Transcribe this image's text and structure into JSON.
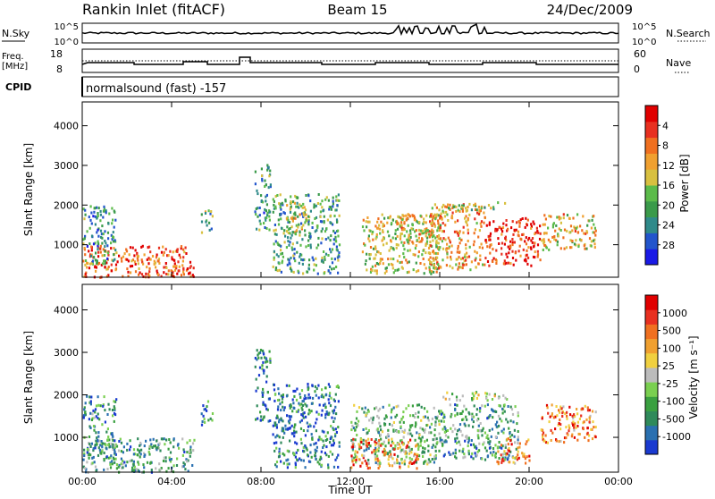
{
  "header": {
    "station": "Rankin Inlet (fitACF)",
    "beam": "Beam 15",
    "date": "24/Dec/2009"
  },
  "noise_panel": {
    "left_label": "N.Sky",
    "right_label": "N.Search",
    "left_ticks": [
      "10^5",
      "10^0"
    ],
    "right_ticks": [
      "10^5",
      "10^0"
    ]
  },
  "freq_panel": {
    "left_label_1": "Freq.",
    "left_label_2": "[MHz]",
    "right_label": "Nave",
    "left_ticks": [
      "18",
      "8"
    ],
    "right_ticks": [
      "60",
      "0"
    ]
  },
  "cpid": {
    "label": "CPID",
    "program": "normalsound (fast) -157"
  },
  "chart_data": [
    {
      "type": "heatmap",
      "title": "Power",
      "ylabel": "Slant Range [km]",
      "xlabel": "",
      "x_ticks": [
        "00:00",
        "04:00",
        "08:00",
        "12:00",
        "16:00",
        "20:00",
        "00:00"
      ],
      "x_range_hours": [
        0,
        24
      ],
      "ylim": [
        180,
        4600
      ],
      "y_ticks": [
        "1000",
        "2000",
        "3000",
        "4000"
      ],
      "y_tick_values": [
        1000,
        2000,
        3000,
        4000
      ],
      "colorbar": {
        "label": "Power [dB]",
        "ticks": [
          "4",
          "8",
          "12",
          "16",
          "20",
          "24",
          "28"
        ],
        "colors": [
          "#1a1ae6",
          "#2255cc",
          "#2f8a8a",
          "#3a9a4a",
          "#5cbb4a",
          "#d8c040",
          "#f0a030",
          "#f07020",
          "#e83020",
          "#e00000"
        ]
      },
      "scatter": [
        {
          "t0": 0.0,
          "t1": 5.0,
          "r0": 200,
          "r1": 1000,
          "level": 0.8
        },
        {
          "t0": 0.0,
          "t1": 1.5,
          "r0": 500,
          "r1": 2000,
          "level": 0.3
        },
        {
          "t0": 4.0,
          "t1": 5.0,
          "r0": 200,
          "r1": 500,
          "level": 0.85
        },
        {
          "t0": 5.3,
          "t1": 5.8,
          "r0": 1300,
          "r1": 1900,
          "level": 0.4
        },
        {
          "t0": 7.7,
          "t1": 8.4,
          "r0": 1400,
          "r1": 3100,
          "level": 0.3
        },
        {
          "t0": 8.5,
          "t1": 11.5,
          "r0": 300,
          "r1": 2300,
          "level": 0.35
        },
        {
          "t0": 9.0,
          "t1": 10.0,
          "r0": 1300,
          "r1": 2100,
          "level": 0.5
        },
        {
          "t0": 12.5,
          "t1": 16.0,
          "r0": 300,
          "r1": 1800,
          "level": 0.55
        },
        {
          "t0": 14.0,
          "t1": 16.0,
          "r0": 1100,
          "r1": 1800,
          "level": 0.6
        },
        {
          "t0": 15.5,
          "t1": 18.0,
          "r0": 400,
          "r1": 2050,
          "level": 0.65
        },
        {
          "t0": 18.0,
          "t1": 20.5,
          "r0": 500,
          "r1": 1700,
          "level": 0.9
        },
        {
          "t0": 20.5,
          "t1": 23.0,
          "r0": 900,
          "r1": 1800,
          "level": 0.6
        },
        {
          "t0": 16.0,
          "t1": 19.0,
          "r0": 1900,
          "r1": 2100,
          "level": 0.5
        }
      ]
    },
    {
      "type": "heatmap",
      "title": "Velocity",
      "ylabel": "Slant Range [km]",
      "xlabel": "Time UT",
      "x_ticks": [
        "00:00",
        "04:00",
        "08:00",
        "12:00",
        "16:00",
        "20:00",
        "00:00"
      ],
      "x_range_hours": [
        0,
        24
      ],
      "ylim": [
        180,
        4600
      ],
      "y_ticks": [
        "1000",
        "2000",
        "3000",
        "4000"
      ],
      "y_tick_values": [
        1000,
        2000,
        3000,
        4000
      ],
      "colorbar": {
        "label": "Velocity [m s⁻¹]",
        "ticks": [
          "1000",
          "500",
          "100",
          "25",
          "-25",
          "-100",
          "-500",
          "-1000"
        ],
        "colors": [
          "#1a3ad0",
          "#2a70b0",
          "#2f8a5a",
          "#3aa040",
          "#7acf50",
          "#bcbcbc",
          "#f0d040",
          "#f0a030",
          "#f07020",
          "#e83020",
          "#e00000"
        ]
      },
      "scatter": [
        {
          "t0": 0.0,
          "t1": 5.0,
          "r0": 200,
          "r1": 1000,
          "level": 0.3
        },
        {
          "t0": 0.0,
          "t1": 1.5,
          "r0": 500,
          "r1": 2000,
          "level": 0.25
        },
        {
          "t0": 5.3,
          "t1": 5.8,
          "r0": 1300,
          "r1": 1900,
          "level": 0.2
        },
        {
          "t0": 7.7,
          "t1": 8.4,
          "r0": 1400,
          "r1": 3100,
          "level": 0.15
        },
        {
          "t0": 8.5,
          "t1": 11.5,
          "r0": 300,
          "r1": 2300,
          "level": 0.2
        },
        {
          "t0": 12.0,
          "t1": 16.0,
          "r0": 400,
          "r1": 1800,
          "level": 0.35
        },
        {
          "t0": 12.0,
          "t1": 15.0,
          "r0": 300,
          "r1": 1000,
          "level": 0.75
        },
        {
          "t0": 16.0,
          "t1": 19.5,
          "r0": 500,
          "r1": 1800,
          "level": 0.3
        },
        {
          "t0": 18.5,
          "t1": 20.0,
          "r0": 400,
          "r1": 1000,
          "level": 0.75
        },
        {
          "t0": 20.5,
          "t1": 23.0,
          "r0": 900,
          "r1": 1800,
          "level": 0.75
        },
        {
          "t0": 16.0,
          "t1": 19.0,
          "r0": 1900,
          "r1": 2100,
          "level": 0.5
        }
      ]
    }
  ]
}
